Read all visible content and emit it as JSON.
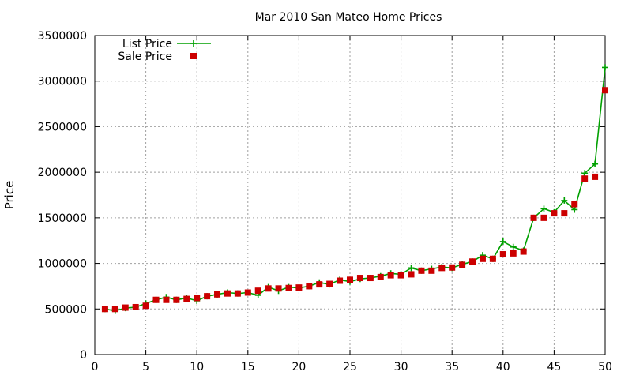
{
  "chart_data": {
    "type": "line",
    "title": "Mar 2010 San Mateo Home Prices",
    "xlabel": "",
    "ylabel": "Price",
    "xlim": [
      0,
      50
    ],
    "ylim": [
      0,
      3500000
    ],
    "xticks": [
      0,
      5,
      10,
      15,
      20,
      25,
      30,
      35,
      40,
      45,
      50
    ],
    "yticks": [
      0,
      500000,
      1000000,
      1500000,
      2000000,
      2500000,
      3000000,
      3500000
    ],
    "grid": true,
    "legend_position": "top-left",
    "x": [
      1,
      2,
      3,
      4,
      5,
      6,
      7,
      8,
      9,
      10,
      11,
      12,
      13,
      14,
      15,
      16,
      17,
      18,
      19,
      20,
      21,
      22,
      23,
      24,
      25,
      26,
      27,
      28,
      29,
      30,
      31,
      32,
      33,
      34,
      35,
      36,
      37,
      38,
      39,
      40,
      41,
      42,
      43,
      44,
      45,
      46,
      47,
      48,
      49,
      50
    ],
    "series": [
      {
        "name": "List Price",
        "style": "line-plus",
        "color": "#00a000",
        "values": [
          500000,
          480000,
          510000,
          520000,
          560000,
          600000,
          630000,
          600000,
          620000,
          590000,
          640000,
          660000,
          680000,
          670000,
          680000,
          650000,
          740000,
          700000,
          740000,
          730000,
          750000,
          790000,
          770000,
          820000,
          800000,
          830000,
          840000,
          860000,
          890000,
          880000,
          950000,
          920000,
          940000,
          960000,
          950000,
          990000,
          1020000,
          1090000,
          1050000,
          1240000,
          1180000,
          1140000,
          1500000,
          1600000,
          1560000,
          1690000,
          1590000,
          1990000,
          2090000,
          3150000
        ]
      },
      {
        "name": "Sale Price",
        "style": "square",
        "color": "#cc0000",
        "values": [
          500000,
          500000,
          515000,
          520000,
          535000,
          600000,
          600000,
          600000,
          610000,
          620000,
          640000,
          660000,
          670000,
          670000,
          680000,
          700000,
          725000,
          725000,
          730000,
          735000,
          750000,
          770000,
          775000,
          810000,
          820000,
          840000,
          840000,
          850000,
          870000,
          870000,
          880000,
          920000,
          920000,
          950000,
          955000,
          985000,
          1020000,
          1050000,
          1050000,
          1100000,
          1110000,
          1130000,
          1500000,
          1500000,
          1550000,
          1550000,
          1650000,
          1930000,
          1950000,
          2900000
        ]
      }
    ]
  }
}
